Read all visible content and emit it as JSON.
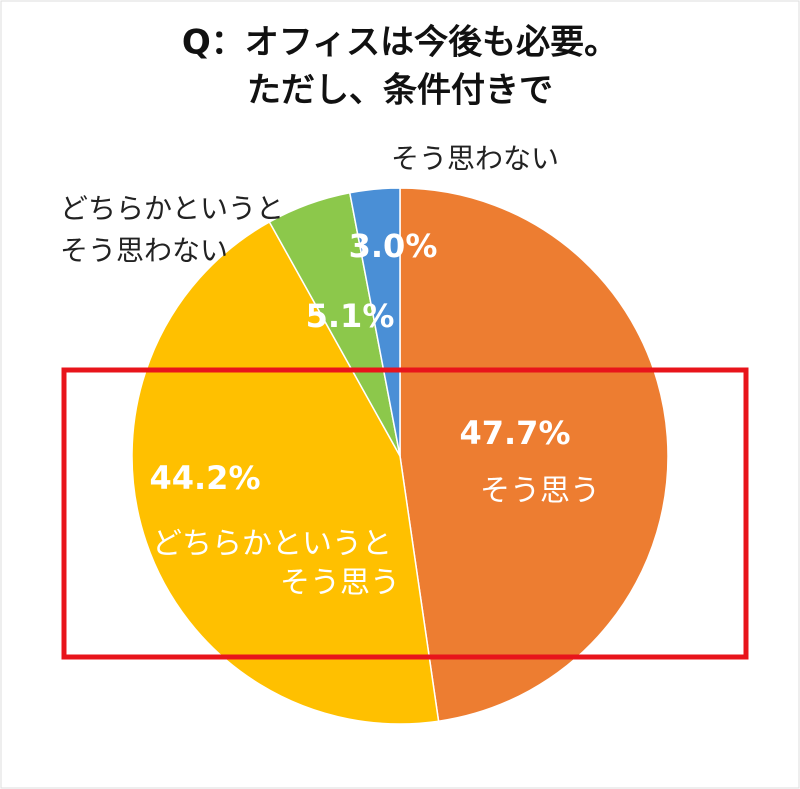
{
  "chart_data": {
    "type": "pie",
    "title": [
      "Q：オフィスは今後も必要。",
      "ただし、条件付きで"
    ],
    "categories": [
      [
        "そう思う"
      ],
      [
        "どちらかというと",
        "そう思う"
      ],
      [
        "どちらかというと",
        "そう思わない"
      ],
      [
        "そう思わない"
      ]
    ],
    "values": [
      47.7,
      44.2,
      5.1,
      3.0
    ],
    "value_labels": [
      "47.7%",
      "44.2%",
      "5.1%",
      "3.0%"
    ],
    "colors": [
      "#ED7D31",
      "#FFC000",
      "#8CC84B",
      "#4A8FD6"
    ]
  }
}
